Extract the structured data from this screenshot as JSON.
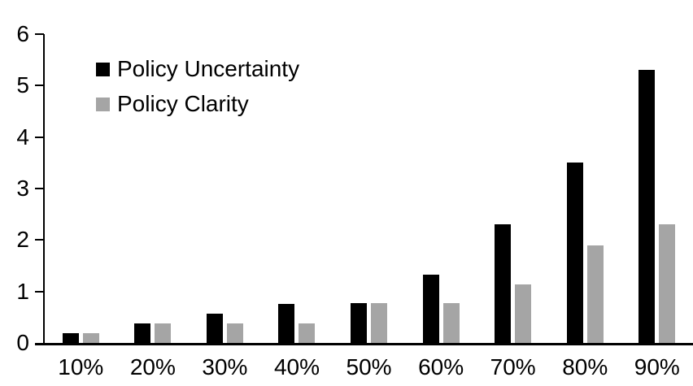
{
  "chart_data": {
    "type": "bar",
    "title": "",
    "xlabel": "",
    "ylabel": "",
    "categories": [
      "10%",
      "20%",
      "30%",
      "40%",
      "50%",
      "60%",
      "70%",
      "80%",
      "90%"
    ],
    "series": [
      {
        "name": "Policy Uncertainty",
        "color": "#000000",
        "values": [
          0.19,
          0.38,
          0.57,
          0.76,
          0.78,
          1.33,
          2.3,
          3.5,
          5.3
        ]
      },
      {
        "name": "Policy Clarity",
        "color": "#a5a5a5",
        "values": [
          0.19,
          0.38,
          0.38,
          0.38,
          0.77,
          0.77,
          1.13,
          1.9,
          2.3
        ]
      }
    ],
    "ylim": [
      0,
      6
    ],
    "yticks": [
      0,
      1,
      2,
      3,
      4,
      5,
      6
    ],
    "grid": false,
    "legend_position": "top-left-inside",
    "background_color": "#ffffff",
    "axis_color": "#000000"
  }
}
